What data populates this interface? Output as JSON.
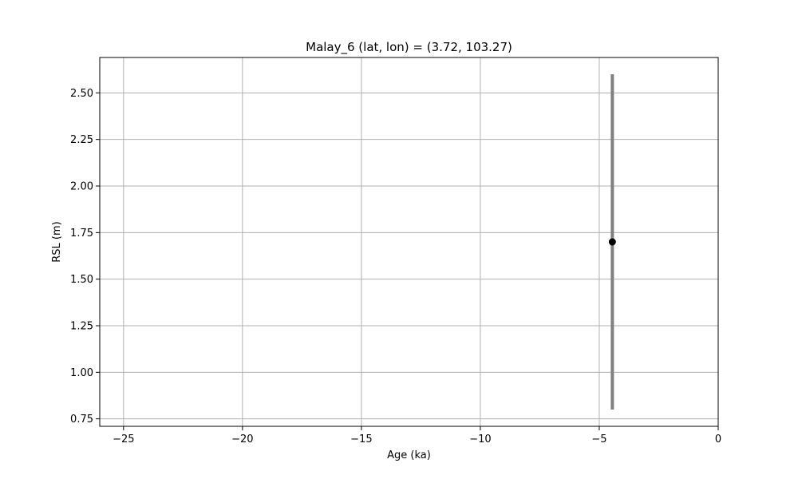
{
  "chart_data": {
    "type": "scatter",
    "title": "Malay_6 (lat, lon) = (3.72, 103.27)",
    "xlabel": "Age (ka)",
    "ylabel": "RSL (m)",
    "xlim": [
      -26,
      0
    ],
    "ylim": [
      0.71,
      2.69
    ],
    "xticks": [
      -25,
      -20,
      -15,
      -10,
      -5,
      0
    ],
    "xtick_labels": [
      "−25",
      "−20",
      "−15",
      "−10",
      "−5",
      "0"
    ],
    "yticks": [
      0.75,
      1.0,
      1.25,
      1.5,
      1.75,
      2.0,
      2.25,
      2.5
    ],
    "ytick_labels": [
      "0.75",
      "1.00",
      "1.25",
      "1.50",
      "1.75",
      "2.00",
      "2.25",
      "2.50"
    ],
    "grid": true,
    "points": [
      {
        "x": -4.45,
        "y": 1.7,
        "y_err_low": 0.8,
        "y_err_high": 2.6
      }
    ],
    "colors": {
      "point": "#000000",
      "errorbar": "#808080",
      "grid": "#b0b0b0"
    }
  }
}
